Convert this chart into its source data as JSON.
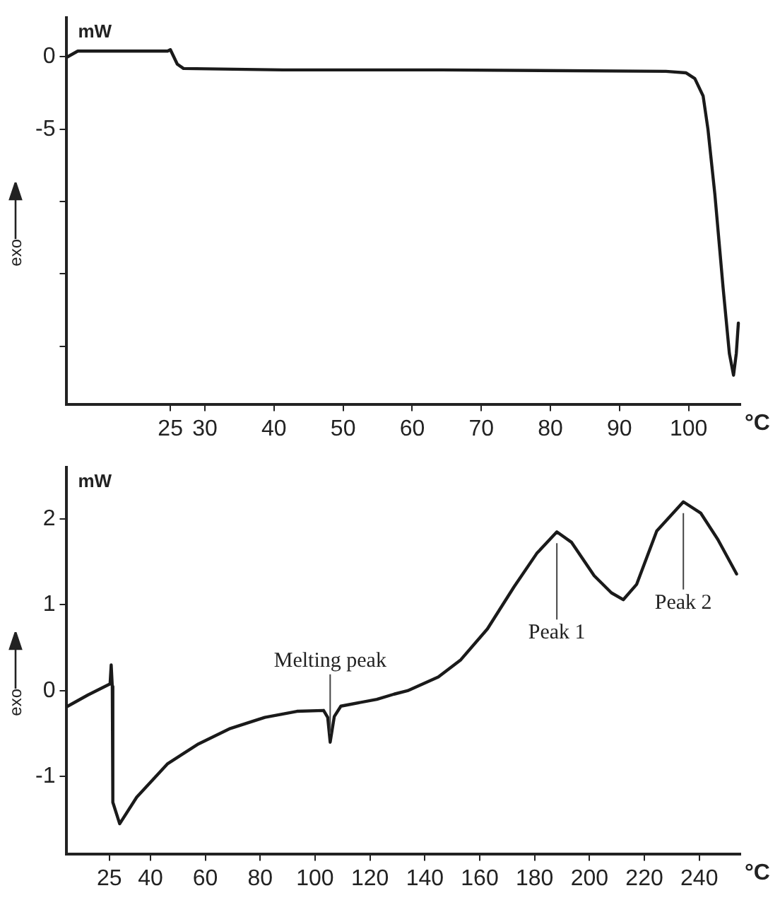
{
  "chart_data": [
    {
      "type": "line",
      "xlabel": "°C",
      "ylabel": "exo",
      "annotations": [
        "mW"
      ],
      "x": [
        10.1,
        11.6,
        24.6,
        25.0,
        26.0,
        26.9,
        41.3,
        64.2,
        96.7,
        99.6,
        100.9,
        102.1,
        102.8,
        103.8,
        105.0,
        105.9,
        106.5,
        106.9,
        107.2
      ],
      "series": [
        {
          "color": "#1a1a1a",
          "values": [
            0,
            0.4,
            0.4,
            0.5,
            -0.5,
            -0.8,
            -0.9,
            -0.9,
            -1.0,
            -1.1,
            -1.5,
            -2.7,
            -5,
            -9.5,
            -16,
            -20.5,
            -22,
            -20.5,
            -18.4
          ]
        }
      ],
      "xlim": [
        10,
        107.5
      ],
      "xticks": [
        25,
        30,
        40,
        50,
        60,
        70,
        80,
        90,
        100
      ],
      "ylim": [
        -24,
        2.7
      ],
      "yticks": [
        0,
        -5,
        {
          "value": -10,
          "label": null
        },
        {
          "value": -15,
          "label": null
        },
        {
          "value": -20,
          "label": null
        }
      ],
      "grid": false,
      "legend": false,
      "marker": "none",
      "line_style": "solid"
    },
    {
      "type": "line",
      "xlabel": "°C",
      "ylabel": "exo",
      "annotations": [
        "mW",
        {
          "text": "Melting peak",
          "x": 105.5,
          "y": -0.6
        },
        {
          "text": "Peak 1",
          "x": 188.1,
          "y": 1.85
        },
        {
          "text": "Peak 2",
          "x": 234.2,
          "y": 2.2
        }
      ],
      "x": [
        9.9,
        17.2,
        25.3,
        25.7,
        26.1,
        26.3,
        28.8,
        35.0,
        46.3,
        57.5,
        69.1,
        81.7,
        93.4,
        103.1,
        104.6,
        105.5,
        107.0,
        109.4,
        122.5,
        128.8,
        133.7,
        144.9,
        153.1,
        162.8,
        172.5,
        180.8,
        188.1,
        193.4,
        201.7,
        208.0,
        212.3,
        217.2,
        224.5,
        234.2,
        240.5,
        246.8,
        253.6
      ],
      "series": [
        {
          "color": "#1a1a1a",
          "values": [
            -0.18,
            -0.05,
            0.08,
            0.3,
            0.05,
            -1.3,
            -1.55,
            -1.24,
            -0.85,
            -0.62,
            -0.44,
            -0.31,
            -0.24,
            -0.23,
            -0.31,
            -0.6,
            -0.3,
            -0.18,
            -0.1,
            -0.04,
            0.0,
            0.16,
            0.36,
            0.72,
            1.21,
            1.6,
            1.85,
            1.73,
            1.34,
            1.14,
            1.06,
            1.24,
            1.86,
            2.2,
            2.07,
            1.76,
            1.36
          ]
        }
      ],
      "xlim": [
        9.5,
        255
      ],
      "xticks": [
        25,
        40,
        60,
        80,
        100,
        120,
        140,
        160,
        180,
        200,
        220,
        240
      ],
      "ylim": [
        -1.9,
        2.6
      ],
      "yticks": [
        2,
        1,
        0,
        -1
      ],
      "grid": false,
      "legend": false,
      "marker": "none",
      "line_style": "solid"
    }
  ]
}
